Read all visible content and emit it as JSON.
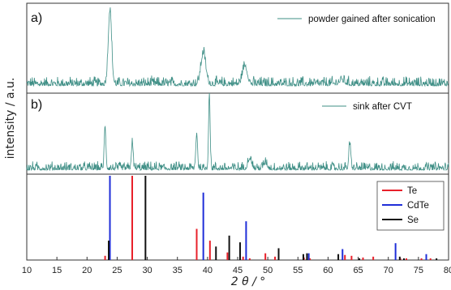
{
  "chart_data": {
    "type": "line",
    "xlabel": "2 θ / °",
    "ylabel": "intensity / a.u.",
    "xlim": [
      10,
      80
    ],
    "x_ticks": [
      10,
      15,
      20,
      25,
      30,
      35,
      40,
      45,
      50,
      55,
      60,
      65,
      70,
      75,
      80
    ],
    "series_color": "#3f8f86",
    "panels": [
      {
        "label": "a)",
        "legend": "powder gained after sonication",
        "noise": 0.09,
        "peaks": [
          {
            "x": 23.8,
            "h": 1.0,
            "w": 0.28
          },
          {
            "x": 39.3,
            "h": 0.42,
            "w": 0.4
          },
          {
            "x": 46.2,
            "h": 0.25,
            "w": 0.4
          },
          {
            "x": 62.3,
            "h": 0.05,
            "w": 0.5
          }
        ]
      },
      {
        "label": "b)",
        "legend": "sink after CVT",
        "noise": 0.08,
        "peaks": [
          {
            "x": 23.0,
            "h": 0.55,
            "w": 0.14
          },
          {
            "x": 27.5,
            "h": 0.35,
            "w": 0.14
          },
          {
            "x": 38.2,
            "h": 0.48,
            "w": 0.14
          },
          {
            "x": 40.3,
            "h": 1.0,
            "w": 0.13
          },
          {
            "x": 47.0,
            "h": 0.14,
            "w": 0.3
          },
          {
            "x": 49.6,
            "h": 0.08,
            "w": 0.3
          },
          {
            "x": 63.6,
            "h": 0.33,
            "w": 0.16
          }
        ]
      }
    ],
    "references": [
      {
        "name": "Te",
        "color": "#e8202a",
        "lines": [
          {
            "x": 23.0,
            "h": 0.05
          },
          {
            "x": 27.5,
            "h": 1.0
          },
          {
            "x": 38.2,
            "h": 0.37
          },
          {
            "x": 40.4,
            "h": 0.23
          },
          {
            "x": 43.3,
            "h": 0.09
          },
          {
            "x": 45.9,
            "h": 0.04
          },
          {
            "x": 47.0,
            "h": 0.02
          },
          {
            "x": 49.6,
            "h": 0.08
          },
          {
            "x": 51.2,
            "h": 0.04
          },
          {
            "x": 56.0,
            "h": 0.03
          },
          {
            "x": 57.0,
            "h": 0.02
          },
          {
            "x": 62.8,
            "h": 0.06
          },
          {
            "x": 63.9,
            "h": 0.05
          },
          {
            "x": 65.8,
            "h": 0.03
          },
          {
            "x": 67.5,
            "h": 0.04
          },
          {
            "x": 72.0,
            "h": 0.02
          },
          {
            "x": 73.0,
            "h": 0.02
          },
          {
            "x": 75.5,
            "h": 0.02
          },
          {
            "x": 77.0,
            "h": 0.02
          }
        ]
      },
      {
        "name": "CdTe",
        "color": "#1f2ed8",
        "lines": [
          {
            "x": 23.8,
            "h": 1.0
          },
          {
            "x": 39.3,
            "h": 0.8
          },
          {
            "x": 46.4,
            "h": 0.46
          },
          {
            "x": 56.8,
            "h": 0.08
          },
          {
            "x": 62.4,
            "h": 0.13
          },
          {
            "x": 71.2,
            "h": 0.2
          },
          {
            "x": 76.3,
            "h": 0.07
          }
        ]
      },
      {
        "name": "Se",
        "color": "#111111",
        "lines": [
          {
            "x": 23.6,
            "h": 0.23
          },
          {
            "x": 29.7,
            "h": 1.0
          },
          {
            "x": 41.4,
            "h": 0.16
          },
          {
            "x": 43.6,
            "h": 0.29
          },
          {
            "x": 45.4,
            "h": 0.21
          },
          {
            "x": 51.8,
            "h": 0.14
          },
          {
            "x": 55.9,
            "h": 0.07
          },
          {
            "x": 56.5,
            "h": 0.08
          },
          {
            "x": 61.7,
            "h": 0.07
          },
          {
            "x": 65.2,
            "h": 0.02
          },
          {
            "x": 71.9,
            "h": 0.04
          },
          {
            "x": 72.6,
            "h": 0.02
          },
          {
            "x": 78.0,
            "h": 0.02
          }
        ]
      }
    ]
  }
}
